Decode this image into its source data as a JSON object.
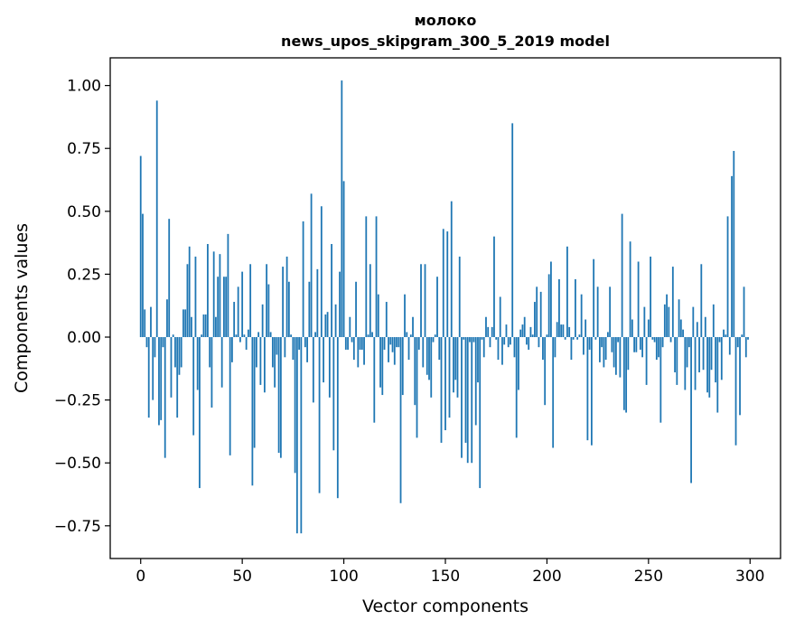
{
  "chart_data": {
    "type": "bar",
    "title": "молоко",
    "subtitle": "news_upos_skipgram_300_5_2019 model",
    "xlabel": "Vector components",
    "ylabel": "Components values",
    "xlim": [
      -15,
      315
    ],
    "ylim": [
      -0.88,
      1.11
    ],
    "xticks": [
      0,
      50,
      100,
      150,
      200,
      250,
      300
    ],
    "xtick_labels": [
      "0",
      "50",
      "100",
      "150",
      "200",
      "250",
      "300"
    ],
    "yticks": [
      -0.75,
      -0.5,
      -0.25,
      0.0,
      0.25,
      0.5,
      0.75,
      1.0
    ],
    "ytick_labels": [
      "−0.75",
      "−0.50",
      "−0.25",
      "0.00",
      "0.25",
      "0.50",
      "0.75",
      "1.00"
    ],
    "bar_color": "#1f77b4",
    "values": [
      0.72,
      0.49,
      0.11,
      -0.04,
      -0.32,
      0.12,
      -0.25,
      -0.08,
      0.94,
      -0.35,
      -0.33,
      -0.04,
      -0.48,
      0.15,
      0.47,
      -0.24,
      0.01,
      -0.12,
      -0.32,
      -0.15,
      -0.12,
      0.11,
      0.11,
      0.29,
      0.36,
      0.08,
      -0.39,
      0.32,
      -0.21,
      -0.6,
      0.01,
      0.09,
      0.09,
      0.37,
      -0.12,
      -0.28,
      0.34,
      0.08,
      0.24,
      0.33,
      -0.2,
      0.24,
      0.24,
      0.41,
      -0.47,
      -0.1,
      0.14,
      0.01,
      0.2,
      -0.02,
      0.26,
      0.01,
      -0.05,
      0.03,
      0.29,
      -0.59,
      -0.44,
      -0.12,
      0.02,
      -0.19,
      0.13,
      -0.22,
      0.29,
      0.21,
      0.02,
      -0.12,
      -0.2,
      -0.07,
      -0.46,
      -0.48,
      0.28,
      -0.08,
      0.32,
      0.22,
      0.01,
      -0.09,
      -0.54,
      -0.78,
      -0.05,
      -0.78,
      0.46,
      -0.04,
      -0.1,
      0.22,
      0.57,
      -0.26,
      0.02,
      0.27,
      -0.62,
      0.52,
      -0.18,
      0.09,
      0.1,
      -0.24,
      0.37,
      -0.45,
      0.13,
      -0.64,
      0.26,
      1.02,
      0.62,
      -0.05,
      -0.05,
      0.08,
      -0.02,
      -0.09,
      0.22,
      -0.12,
      -0.05,
      -0.05,
      -0.11,
      0.48,
      0.01,
      0.29,
      0.02,
      -0.34,
      0.48,
      0.17,
      -0.2,
      -0.23,
      -0.05,
      0.14,
      -0.1,
      -0.03,
      -0.06,
      -0.11,
      -0.04,
      -0.04,
      -0.66,
      -0.23,
      0.17,
      0.02,
      -0.09,
      0.01,
      0.08,
      -0.27,
      -0.4,
      -0.05,
      0.29,
      -0.12,
      0.29,
      -0.15,
      -0.17,
      -0.24,
      -0.02,
      0.01,
      0.24,
      -0.09,
      -0.42,
      0.43,
      -0.37,
      0.42,
      -0.32,
      0.54,
      -0.22,
      -0.17,
      -0.24,
      0.32,
      -0.48,
      -0.01,
      -0.42,
      -0.5,
      -0.02,
      -0.5,
      -0.02,
      -0.35,
      -0.18,
      -0.6,
      -0.01,
      -0.08,
      0.08,
      0.04,
      -0.04,
      0.04,
      0.4,
      -0.01,
      -0.09,
      0.16,
      -0.11,
      -0.03,
      0.05,
      -0.04,
      -0.03,
      0.85,
      -0.08,
      -0.4,
      -0.21,
      0.03,
      0.05,
      0.08,
      -0.03,
      -0.05,
      0.04,
      0.01,
      0.14,
      0.2,
      -0.04,
      0.18,
      -0.09,
      -0.27,
      0.01,
      0.25,
      0.3,
      -0.44,
      -0.08,
      0.06,
      0.23,
      0.05,
      0.05,
      -0.01,
      0.36,
      0.04,
      -0.09,
      -0.01,
      0.23,
      -0.01,
      0.01,
      0.17,
      -0.07,
      0.07,
      -0.41,
      -0.05,
      -0.43,
      0.31,
      -0.01,
      0.2,
      -0.1,
      -0.04,
      -0.12,
      -0.09,
      0.02,
      0.2,
      -0.06,
      -0.12,
      -0.15,
      -0.02,
      -0.16,
      0.49,
      -0.29,
      -0.3,
      -0.13,
      0.38,
      0.07,
      -0.06,
      -0.06,
      0.3,
      -0.05,
      -0.08,
      0.12,
      -0.19,
      0.07,
      0.32,
      -0.01,
      -0.02,
      -0.09,
      -0.08,
      -0.34,
      -0.04,
      0.13,
      0.17,
      0.12,
      -0.02,
      0.28,
      -0.14,
      -0.19,
      0.15,
      0.07,
      0.03,
      -0.21,
      -0.12,
      -0.04,
      -0.58,
      0.12,
      -0.21,
      0.06,
      -0.14,
      0.29,
      -0.13,
      0.08,
      -0.22,
      -0.24,
      -0.13,
      0.13,
      -0.18,
      -0.3,
      -0.02,
      -0.17,
      0.03,
      0.01,
      0.48,
      -0.07,
      0.64,
      0.74,
      -0.43,
      -0.04,
      -0.31,
      0.01,
      0.2,
      -0.08,
      -0.01
    ]
  }
}
